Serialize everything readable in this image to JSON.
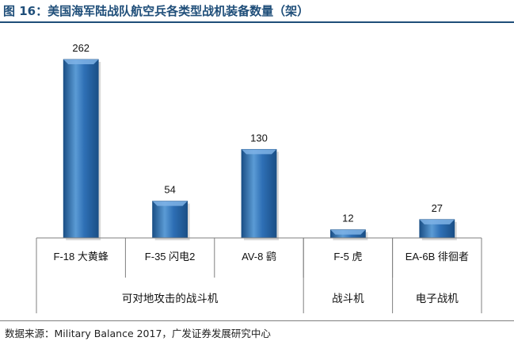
{
  "header": {
    "title": "图 16：美国海军陆战队航空兵各类型战机装备数量（架）"
  },
  "footer": {
    "source": "数据来源：Military Balance 2017，广发证券发展研究中心"
  },
  "colors": {
    "title": "#1f4e79",
    "bar_mid": "#2e6fb5",
    "bar_light": "#5b9bd5",
    "bar_dark": "#1a4f86"
  },
  "chart_data": {
    "type": "bar",
    "title": "美国海军陆战队航空兵各类型战机装备数量（架）",
    "xlabel": "",
    "ylabel": "",
    "categories": [
      "F-18 大黄蜂",
      "F-35 闪电2",
      "AV-8 鹞",
      "F-5 虎",
      "EA-6B 徘徊者"
    ],
    "values": [
      262,
      54,
      130,
      12,
      27
    ],
    "groups": [
      {
        "label": "可对地攻击的战斗机",
        "span": 3
      },
      {
        "label": "战斗机",
        "span": 1
      },
      {
        "label": "电子战机",
        "span": 1
      }
    ],
    "data_labels": [
      "262",
      "54",
      "130",
      "12",
      "27"
    ],
    "ylim": [
      0,
      290
    ],
    "grid": false,
    "legend": "none"
  }
}
